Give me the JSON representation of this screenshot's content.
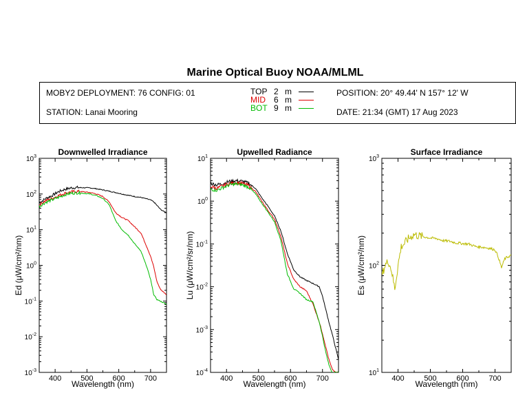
{
  "header": {
    "title": "Marine Optical Buoy NOAA/MLML",
    "deployment": "MOBY2 DEPLOYMENT: 76 CONFIG: 01",
    "station": "STATION: Lanai Mooring",
    "position": "POSITION: 20° 49.44' N   157° 12' W",
    "date": "DATE: 21:34 (GMT) 17 Aug 2023"
  },
  "legend": [
    {
      "name": "TOP",
      "depth": "2",
      "unit": "m",
      "color": "#000000"
    },
    {
      "name": "MID",
      "depth": "6",
      "unit": "m",
      "color": "#dd0000"
    },
    {
      "name": "BOT",
      "depth": "9",
      "unit": "m",
      "color": "#00bb00"
    }
  ],
  "chart_data": [
    {
      "type": "line",
      "title": "Downwelled Irradiance",
      "xlabel": "Wavelength (nm)",
      "ylabel": "Ed  (μW/cm²/nm)",
      "yscale": "log",
      "xlim": [
        350,
        750
      ],
      "ylim": [
        0.001,
        1000
      ],
      "xticks": [
        400,
        500,
        600,
        700
      ],
      "ytick_labels": [
        "10⁻³",
        "10⁻²",
        "10⁻¹",
        "10⁰",
        "10¹",
        "10²",
        "10³"
      ],
      "x": [
        350,
        370,
        390,
        410,
        430,
        450,
        470,
        490,
        510,
        530,
        550,
        570,
        590,
        610,
        630,
        650,
        670,
        690,
        700,
        710,
        720,
        730,
        740,
        750
      ],
      "series": [
        {
          "name": "TOP",
          "color": "#000000",
          "values": [
            55,
            75,
            90,
            115,
            135,
            148,
            152,
            150,
            148,
            140,
            130,
            120,
            110,
            100,
            92,
            85,
            80,
            72,
            68,
            60,
            48,
            38,
            33,
            30
          ]
        },
        {
          "name": "MID",
          "color": "#dd0000",
          "values": [
            50,
            65,
            75,
            90,
            105,
            115,
            118,
            115,
            110,
            100,
            85,
            60,
            30,
            22,
            18,
            12,
            8,
            3,
            1.8,
            0.9,
            0.35,
            0.22,
            0.18,
            0.15
          ]
        },
        {
          "name": "BOT",
          "color": "#00bb00",
          "values": [
            45,
            58,
            68,
            80,
            95,
            105,
            108,
            105,
            100,
            90,
            75,
            50,
            18,
            10,
            7,
            4,
            2.5,
            0.8,
            0.4,
            0.15,
            0.11,
            0.1,
            0.09,
            0.08
          ]
        }
      ]
    },
    {
      "type": "line",
      "title": "Upwelled Radiance",
      "xlabel": "Wavelength (nm)",
      "ylabel": "Lu  (μW/cm²/sr/nm)",
      "yscale": "log",
      "xlim": [
        350,
        750
      ],
      "ylim": [
        0.0001,
        10
      ],
      "xticks": [
        400,
        500,
        600,
        700
      ],
      "ytick_labels": [
        "10⁻⁴",
        "10⁻³",
        "10⁻²",
        "10⁻¹",
        "10⁰",
        "10¹"
      ],
      "x": [
        350,
        370,
        390,
        410,
        430,
        450,
        470,
        490,
        510,
        530,
        550,
        570,
        590,
        610,
        630,
        650,
        670,
        690,
        700,
        710,
        720,
        730,
        740,
        750
      ],
      "series": [
        {
          "name": "TOP",
          "color": "#000000",
          "values": [
            2.6,
            2.4,
            2.6,
            2.9,
            3.0,
            2.9,
            2.6,
            2.0,
            1.2,
            0.75,
            0.45,
            0.2,
            0.06,
            0.025,
            0.017,
            0.014,
            0.012,
            0.01,
            0.006,
            0.003,
            0.0015,
            0.0008,
            0.0004,
            0.0002
          ]
        },
        {
          "name": "MID",
          "color": "#dd0000",
          "values": [
            2.2,
            2.0,
            2.3,
            2.6,
            2.7,
            2.6,
            2.3,
            1.7,
            1.0,
            0.6,
            0.38,
            0.15,
            0.035,
            0.015,
            0.01,
            0.008,
            0.004,
            0.0015,
            0.0008,
            0.0004,
            0.0002,
            0.00012,
            0.0001,
            0.0001
          ]
        },
        {
          "name": "BOT",
          "color": "#00bb00",
          "values": [
            1.9,
            1.8,
            2.1,
            2.4,
            2.5,
            2.4,
            2.1,
            1.5,
            0.9,
            0.55,
            0.33,
            0.12,
            0.02,
            0.009,
            0.007,
            0.005,
            0.0045,
            0.0015,
            0.0007,
            0.0003,
            0.00015,
            0.0001,
            0.0001,
            0.0001
          ]
        }
      ]
    },
    {
      "type": "line",
      "title": "Surface Irradiance",
      "xlabel": "Wavelength (nm)",
      "ylabel": "Es  (μW/cm²/nm)",
      "yscale": "log",
      "xlim": [
        350,
        750
      ],
      "ylim": [
        10,
        1000
      ],
      "xticks": [
        400,
        500,
        600,
        700
      ],
      "ytick_labels": [
        "10¹",
        "10²",
        "10³"
      ],
      "x": [
        350,
        360,
        370,
        380,
        390,
        400,
        410,
        420,
        430,
        440,
        450,
        460,
        480,
        500,
        520,
        540,
        560,
        580,
        600,
        620,
        640,
        660,
        680,
        700,
        710,
        720,
        730,
        740,
        750
      ],
      "series": [
        {
          "name": "Es",
          "color": "#bbbb00",
          "values": [
            80,
            100,
            110,
            90,
            60,
            100,
            150,
            160,
            175,
            185,
            195,
            190,
            185,
            180,
            178,
            170,
            168,
            162,
            160,
            158,
            150,
            148,
            145,
            140,
            120,
            95,
            115,
            120,
            125
          ]
        }
      ]
    }
  ]
}
